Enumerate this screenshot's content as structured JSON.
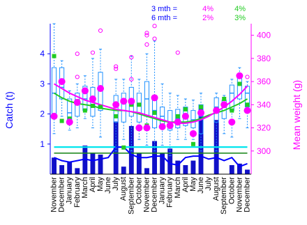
{
  "chart_data": {
    "type": "bar",
    "legend": {
      "rows": [
        {
          "label": "3 mth =",
          "magenta": "4%",
          "green": "4%"
        },
        {
          "label": "6 mth =",
          "magenta": "2%",
          "green": "3%"
        }
      ]
    },
    "categories": [
      "November",
      "December",
      "January",
      "February",
      "March",
      "April",
      "May",
      "June",
      "July",
      "August",
      "September",
      "October",
      "November",
      "December",
      "January",
      "February",
      "March",
      "April",
      "May",
      "June",
      "July",
      "August",
      "September",
      "October",
      "November",
      "December"
    ],
    "ylabel_left": "Catch (t)",
    "ylabel_right": "Mean weight (g)",
    "ylim_left": [
      0,
      5
    ],
    "yticks_left": [
      "1",
      "2",
      "3",
      "4"
    ],
    "ylim_right": [
      280,
      410
    ],
    "yticks_right": [
      "300",
      "320",
      "340",
      "360",
      "380",
      "400"
    ],
    "catch_bars": [
      0.55,
      0.3,
      0.4,
      0.2,
      0.95,
      0.7,
      0.65,
      0,
      1.75,
      0.25,
      1.6,
      0.7,
      0.2,
      1.1,
      0.7,
      0.85,
      0.45,
      0.3,
      0.45,
      2.2,
      0,
      1.8,
      0,
      0.3,
      0.35,
      0.15
    ],
    "catch_blue_line": [
      0.55,
      0.45,
      0.4,
      0.45,
      0.5,
      0.45,
      0.5,
      0.55,
      0.9,
      0.9,
      0.65,
      0.55,
      0.55,
      0.6,
      0.6,
      0.35,
      0.3,
      0.55,
      0.6,
      0.6,
      0.5,
      0.55,
      0.45,
      0.55,
      0.25,
      0.35
    ],
    "catch_cyan_line": [
      0.9,
      0.9,
      0.9,
      0.9,
      0.9,
      0.9,
      0.9,
      0.9,
      0.9,
      0.9,
      0.9,
      0.9,
      0.9,
      0.9,
      0.9,
      0.9,
      0.9,
      0.9,
      0.9,
      0.9,
      0.9,
      0.9,
      0.9,
      0.9,
      0.9,
      0.9
    ],
    "catch_green_line": [
      0.7,
      0.7,
      0.7,
      0.7,
      0.7,
      0.7,
      0.7,
      0.7,
      0.7,
      0.7,
      0.7,
      0.7,
      0.7,
      0.7,
      0.7,
      0.7,
      0.7,
      0.7,
      0.7,
      0.7,
      0.7,
      0.7,
      0.7,
      0.7,
      0.7,
      0.7
    ],
    "boxplots_weight": [
      {
        "q1": 330,
        "med": 350,
        "q3": 372,
        "lo": 315,
        "hi": 410
      },
      {
        "q1": 345,
        "med": 355,
        "q3": 372,
        "lo": 330,
        "hi": 378
      },
      {
        "q1": 325,
        "med": 333,
        "q3": 345,
        "lo": 318,
        "hi": 352
      },
      {
        "q1": 330,
        "med": 340,
        "q3": 350,
        "lo": 320,
        "hi": 358
      },
      {
        "q1": 335,
        "med": 345,
        "q3": 356,
        "lo": 328,
        "hi": 365
      },
      {
        "q1": 330,
        "med": 343,
        "q3": 355,
        "lo": 320,
        "hi": 380
      },
      {
        "q1": 335,
        "med": 353,
        "q3": 368,
        "lo": 312,
        "hi": 388
      },
      {
        "q1": 0,
        "med": 0,
        "q3": 0,
        "lo": 0,
        "hi": 0
      },
      {
        "q1": 325,
        "med": 335,
        "q3": 348,
        "lo": 300,
        "hi": 362
      },
      {
        "q1": 325,
        "med": 335,
        "q3": 350,
        "lo": 310,
        "hi": 362
      },
      {
        "q1": 330,
        "med": 343,
        "q3": 355,
        "lo": 300,
        "hi": 382
      },
      {
        "q1": 325,
        "med": 340,
        "q3": 350,
        "lo": 310,
        "hi": 362
      },
      {
        "q1": 330,
        "med": 345,
        "q3": 360,
        "lo": 305,
        "hi": 384
      },
      {
        "q1": 320,
        "med": 335,
        "q3": 348,
        "lo": 300,
        "hi": 395
      },
      {
        "q1": 320,
        "med": 330,
        "q3": 338,
        "lo": 305,
        "hi": 358
      },
      {
        "q1": 318,
        "med": 325,
        "q3": 335,
        "lo": 296,
        "hi": 350
      },
      {
        "q1": 320,
        "med": 328,
        "q3": 336,
        "lo": 310,
        "hi": 348
      },
      {
        "q1": 322,
        "med": 330,
        "q3": 338,
        "lo": 310,
        "hi": 345
      },
      {
        "q1": 320,
        "med": 327,
        "q3": 335,
        "lo": 310,
        "hi": 344
      },
      {
        "q1": 315,
        "med": 330,
        "q3": 340,
        "lo": 300,
        "hi": 350
      },
      {
        "q1": 0,
        "med": 0,
        "q3": 0,
        "lo": 0,
        "hi": 0
      },
      {
        "q1": 325,
        "med": 338,
        "q3": 346,
        "lo": 300,
        "hi": 350
      },
      {
        "q1": 328,
        "med": 338,
        "q3": 344,
        "lo": 315,
        "hi": 348
      },
      {
        "q1": 335,
        "med": 350,
        "q3": 357,
        "lo": 312,
        "hi": 362
      },
      {
        "q1": 345,
        "med": 358,
        "q3": 366,
        "lo": 328,
        "hi": 372
      },
      {
        "q1": 338,
        "med": 350,
        "q3": 356,
        "lo": 320,
        "hi": 360
      }
    ],
    "green_points_weight": [
      382,
      326,
      328,
      343,
      335,
      339,
      338,
      null,
      330,
      303,
      340,
      340,
      322,
      333,
      322,
      322,
      330,
      336,
      306,
      338,
      null,
      336,
      345,
      335,
      358,
      340
    ],
    "magenta_points_weight": [
      330,
      360,
      325,
      342,
      352,
      345,
      354,
      null,
      340,
      343,
      343,
      320,
      320,
      346,
      321,
      322,
      325,
      330,
      315,
      333,
      null,
      335,
      340,
      325,
      365,
      335
    ],
    "outliers_weight": [
      [
        null
      ],
      [],
      [],
      [
        364,
        384
      ],
      [],
      [
        385
      ],
      [
        404
      ],
      [],
      [
        373,
        371
      ],
      [],
      [
        381,
        362
      ],
      [],
      [
        400,
        392,
        402
      ],
      [
        408,
        397
      ],
      [],
      [],
      [
        385
      ],
      [],
      [],
      [],
      [],
      [],
      [],
      [],
      [],
      [
        364
      ]
    ],
    "magenta_line": [
      358,
      354,
      350,
      347,
      344,
      342,
      340,
      338,
      336,
      335,
      334,
      333,
      331,
      329,
      327,
      325,
      324,
      324,
      325,
      327,
      330,
      334,
      338,
      343,
      349,
      356
    ],
    "green_line": [
      350,
      346,
      343,
      341,
      340,
      339,
      337,
      336,
      335,
      335,
      334,
      332,
      330,
      328,
      326,
      325,
      325,
      325,
      326,
      328,
      331,
      333,
      335,
      338,
      341,
      345
    ],
    "colors": {
      "bar": "#1010c8",
      "blue_line": "#0000ff",
      "cyan_line": "#00e5ee",
      "green_line_catch": "#228b22",
      "box": "#1e90ff",
      "magenta": "#ff00ff",
      "green": "#22cc22",
      "left_axis": "#0000ff",
      "right_axis": "#ff00ff"
    }
  }
}
